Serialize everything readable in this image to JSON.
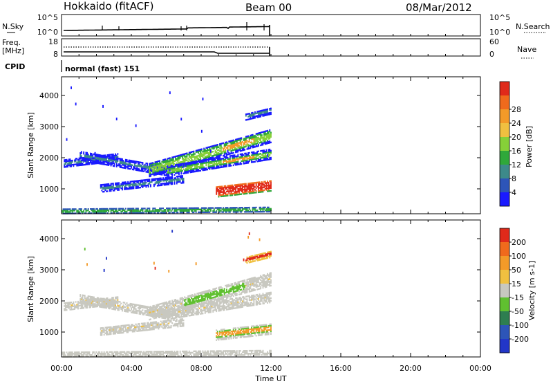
{
  "header": {
    "station": "Hokkaido (fitACF)",
    "beam": "Beam 00",
    "date": "08/Mar/2012"
  },
  "noise_panel": {
    "left_label": "N.Sky",
    "right_label": "N.Search",
    "left_ticks": [
      "10^5",
      "10^0"
    ],
    "right_ticks": [
      "10^5",
      "10^0"
    ]
  },
  "freq_panel": {
    "left_label_1": "Freq.",
    "left_label_2": "[MHz]",
    "right_label": "Nave",
    "left_ticks": [
      "18",
      "8"
    ],
    "right_ticks": [
      "60",
      "0"
    ]
  },
  "cpid": {
    "label": "CPID",
    "value": "normal (fast) 151"
  },
  "chart_data": [
    {
      "type": "heatmap",
      "name": "power",
      "ylabel": "Slant Range [km]",
      "y_ticks": [
        1000,
        2000,
        3000,
        4000
      ],
      "ylim": [
        200,
        4600
      ],
      "xlim": [
        0,
        24
      ],
      "colorbar_label": "Power [dB]",
      "colorbar_ticks": [
        "4",
        "8",
        "12",
        "16",
        "20",
        "24",
        "28"
      ],
      "colors": [
        "#1a1aff",
        "#2d55b8",
        "#3d8a8a",
        "#2fa83a",
        "#86d038",
        "#f0c040",
        "#f39a28",
        "#f06a1c",
        "#e02a1a"
      ]
    },
    {
      "type": "heatmap",
      "name": "velocity",
      "ylabel": "Slant Range [km]",
      "y_ticks": [
        1000,
        2000,
        3000,
        4000
      ],
      "ylim": [
        200,
        4600
      ],
      "xlim": [
        0,
        24
      ],
      "colorbar_label": "Velocity [m s-1]",
      "colorbar_ticks": [
        "200",
        "100",
        "50",
        "15",
        "-15",
        "-50",
        "-100",
        "-200"
      ],
      "colors": [
        "#2236c8",
        "#2d55b8",
        "#2e7e50",
        "#60c030",
        "#c8c8c0",
        "#f0c040",
        "#f39a28",
        "#f06a1c",
        "#e02a1a"
      ]
    }
  ],
  "x_axis": {
    "ticks": [
      "00:00",
      "04:00",
      "08:00",
      "12:00",
      "16:00",
      "20:00",
      "00:00"
    ],
    "label": "Time UT"
  }
}
